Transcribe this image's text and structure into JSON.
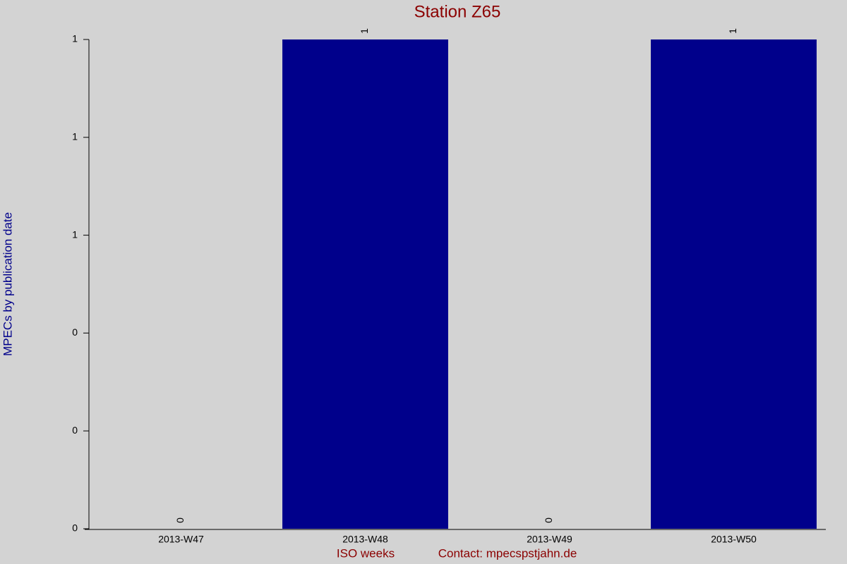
{
  "chart_data": {
    "type": "bar",
    "title": "Station Z65",
    "x_label": "ISO weeks",
    "y_label": "MPECs by publication date",
    "footer": "Contact: mpecspstjahn.de",
    "categories": [
      "2013-W47",
      "2013-W48",
      "2013-W49",
      "2013-W50"
    ],
    "values": [
      0,
      1,
      0,
      1
    ],
    "color": "#00008b",
    "ylim": [
      0,
      1
    ],
    "yticks": [
      0,
      {
        "value": 0.2,
        "label": "0"
      },
      {
        "value": 0.4,
        "label": "0"
      },
      {
        "value": 0.6,
        "label": "1"
      },
      {
        "value": 0.8,
        "label": "1"
      },
      1
    ]
  }
}
